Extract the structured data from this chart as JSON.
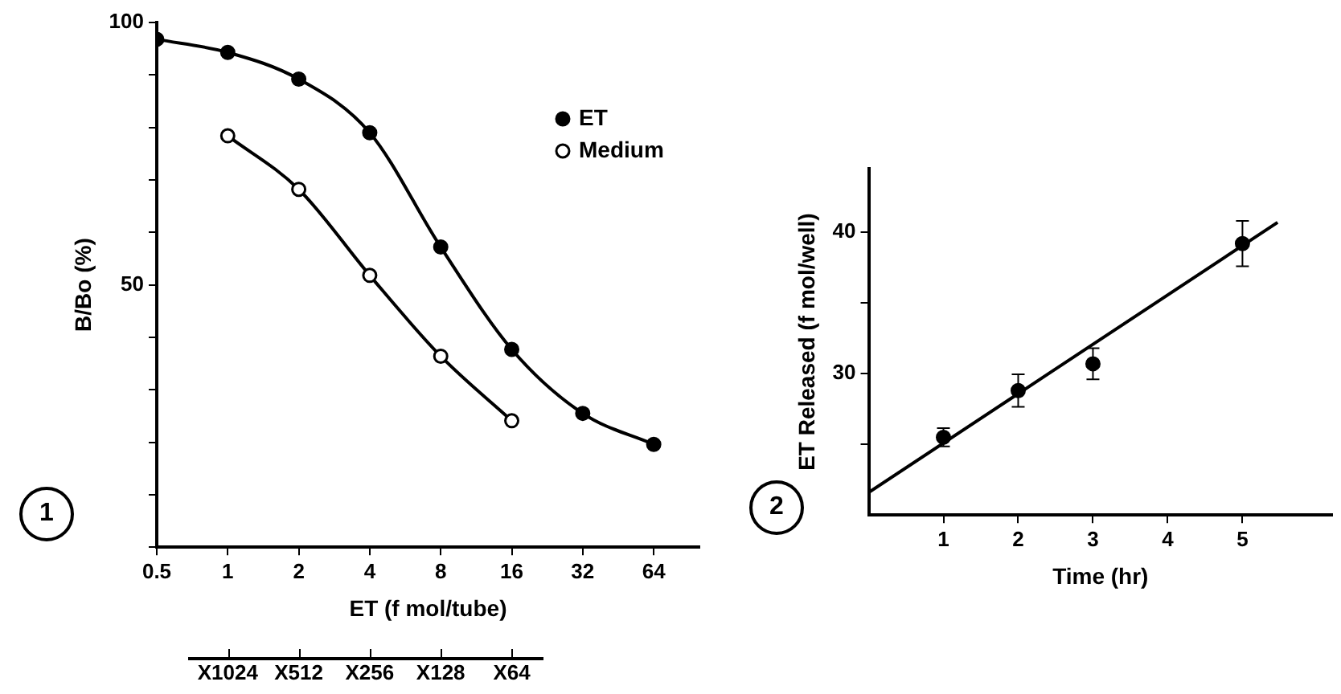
{
  "chart_data": [
    {
      "type": "line",
      "xlabel": "ET (f mol/tube)",
      "ylabel": "B/Bo (%)",
      "log": "x",
      "marker": "circle",
      "legend": "top right",
      "grid": false,
      "x": [
        0.5,
        1,
        2,
        4,
        8,
        16,
        32,
        64
      ],
      "series": [
        {
          "name": "ET",
          "color": "#000000",
          "values": [
            96.8,
            94.3,
            89.2,
            79.0,
            57.2,
            37.7,
            25.5,
            19.6
          ]
        },
        {
          "name": "Medium",
          "color": "#ffffff",
          "x": [
            1,
            2,
            4,
            8,
            16
          ],
          "values": [
            78.4,
            68.2,
            51.8,
            36.4,
            24.1
          ]
        }
      ],
      "xlim": [
        0.5,
        100
      ],
      "xticks": [
        0.5,
        1,
        2,
        4,
        8,
        16,
        32,
        64
      ],
      "ylim": [
        0,
        100
      ],
      "yticks": [
        {
          "value": 0,
          "label": null
        },
        {
          "value": 10,
          "label": null
        },
        {
          "value": 20,
          "label": null
        },
        {
          "value": 30,
          "label": null
        },
        {
          "value": 40,
          "label": null
        },
        50,
        {
          "value": 60,
          "label": null
        },
        {
          "value": 70,
          "label": null
        },
        {
          "value": 80,
          "label": null
        },
        {
          "value": 90,
          "label": null
        },
        100
      ],
      "annotations": [
        "1",
        "X1024",
        "X512",
        "X256",
        "X128",
        "X64"
      ]
    },
    {
      "type": "scatter",
      "xlabel": "Time (hr)",
      "ylabel": "ET Released (f mol/well)",
      "marker": "circle",
      "grid": false,
      "x": [
        1,
        2,
        3,
        5
      ],
      "series": [
        {
          "color": "#000000",
          "values": [
            25.5,
            28.8,
            30.7,
            39.2
          ],
          "errors": [
            0.65,
            1.15,
            1.1,
            1.6
          ]
        },
        {
          "type": "line",
          "color": "#000000",
          "x": [
            0,
            5.47
          ],
          "values": [
            21.6,
            40.7
          ],
          "marker": "none"
        }
      ],
      "xlim": [
        0,
        6.2
      ],
      "xticks": [
        1,
        2,
        3,
        4,
        5
      ],
      "ylim": [
        20,
        44.5
      ],
      "yticks": [
        {
          "value": 25,
          "label": null
        },
        30,
        {
          "value": 35,
          "label": null
        },
        40
      ],
      "annotations": [
        "2"
      ]
    }
  ]
}
